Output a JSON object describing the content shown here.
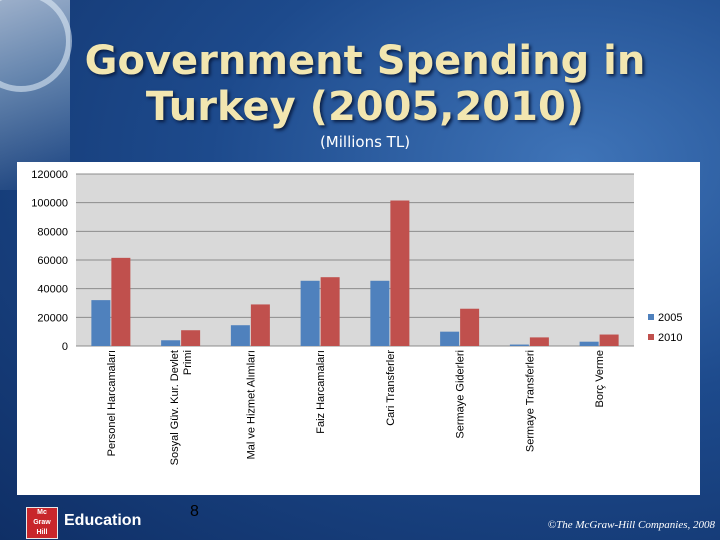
{
  "slide": {
    "title_line1": "Government Spending in",
    "title_line2": "Turkey (2005,2010)",
    "subtitle": "(Millions TL)",
    "brand_logo": [
      "Mc",
      "Graw",
      "Hill"
    ],
    "brand_label": "Education",
    "page_number": "8",
    "copyright": "©The McGraw-Hill Companies, 2008"
  },
  "colors": {
    "series_2005": "#4f81bd",
    "series_2010": "#c0504d",
    "plot_bg": "#d9d9d9",
    "title": "#f2e6b0"
  },
  "chart_data": {
    "type": "bar",
    "title": "",
    "xlabel": "",
    "ylabel": "",
    "categories": [
      [
        "Personel Harcamaları"
      ],
      [
        "Sosyal Güv. Kur. Devlet",
        "Primi"
      ],
      [
        "Mal ve Hizmet Alımları"
      ],
      [
        "Faiz Harcamaları"
      ],
      [
        "Cari Transferler"
      ],
      [
        "Sermaye Giderleri"
      ],
      [
        "Sermaye Transferleri"
      ],
      [
        "Borç Verme"
      ]
    ],
    "series": [
      {
        "name": "2005",
        "values": [
          32000,
          4000,
          14500,
          45500,
          45500,
          10000,
          1000,
          3000
        ]
      },
      {
        "name": "2010",
        "values": [
          61500,
          11000,
          29000,
          48000,
          101500,
          26000,
          6000,
          8000
        ]
      }
    ],
    "ylim": [
      0,
      120000
    ],
    "yticks": [
      0,
      20000,
      40000,
      60000,
      80000,
      100000,
      120000
    ],
    "grid": true,
    "legend": "right"
  }
}
